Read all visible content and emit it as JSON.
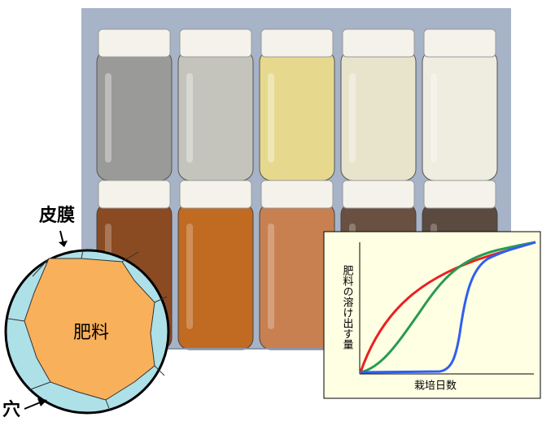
{
  "diagram": {
    "coating_label": "皮膜",
    "fertilizer_label": "肥料",
    "hole_label": "穴",
    "graph": {
      "y_label": "肥料の溶け出す量",
      "x_label": "栽培日数"
    }
  }
}
